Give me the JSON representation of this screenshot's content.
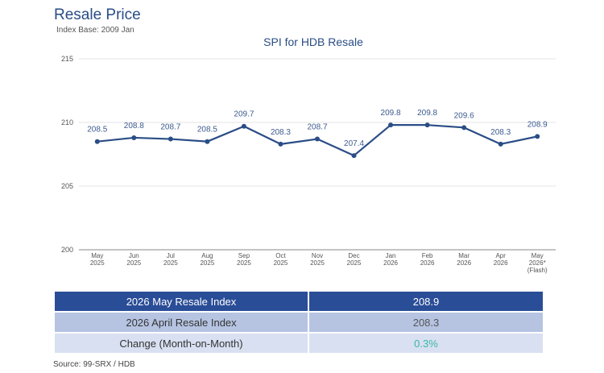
{
  "header": {
    "title": "Resale Price",
    "subtitle": "Index Base: 2009 Jan"
  },
  "chart_data": {
    "type": "line",
    "title": "SPI for HDB Resale",
    "xlabel": "",
    "ylabel": "",
    "ylim": [
      200,
      215
    ],
    "yticks": [
      200,
      205,
      210,
      215
    ],
    "grid": true,
    "categories": [
      {
        "line1": "May",
        "line2": "2025",
        "line3": ""
      },
      {
        "line1": "Jun",
        "line2": "2025",
        "line3": ""
      },
      {
        "line1": "Jul",
        "line2": "2025",
        "line3": ""
      },
      {
        "line1": "Aug",
        "line2": "2025",
        "line3": ""
      },
      {
        "line1": "Sep",
        "line2": "2025",
        "line3": ""
      },
      {
        "line1": "Oct",
        "line2": "2025",
        "line3": ""
      },
      {
        "line1": "Nov",
        "line2": "2025",
        "line3": ""
      },
      {
        "line1": "Dec",
        "line2": "2025",
        "line3": ""
      },
      {
        "line1": "Jan",
        "line2": "2026",
        "line3": ""
      },
      {
        "line1": "Feb",
        "line2": "2026",
        "line3": ""
      },
      {
        "line1": "Mar",
        "line2": "2026",
        "line3": ""
      },
      {
        "line1": "Apr",
        "line2": "2026",
        "line3": ""
      },
      {
        "line1": "May",
        "line2": "2026*",
        "line3": "(Flash)"
      }
    ],
    "values": [
      208.5,
      208.8,
      208.7,
      208.5,
      209.7,
      208.3,
      208.7,
      207.4,
      209.8,
      209.8,
      209.6,
      208.3,
      208.9
    ],
    "color": "#2a4d86"
  },
  "summary": {
    "rows": [
      {
        "label": "2026 May Resale Index",
        "value": "208.9"
      },
      {
        "label": "2026 April Resale Index",
        "value": "208.3"
      },
      {
        "label": "Change (Month-on-Month)",
        "value": "0.3%"
      }
    ]
  },
  "footer": {
    "source": "Source: 99-SRX / HDB"
  }
}
